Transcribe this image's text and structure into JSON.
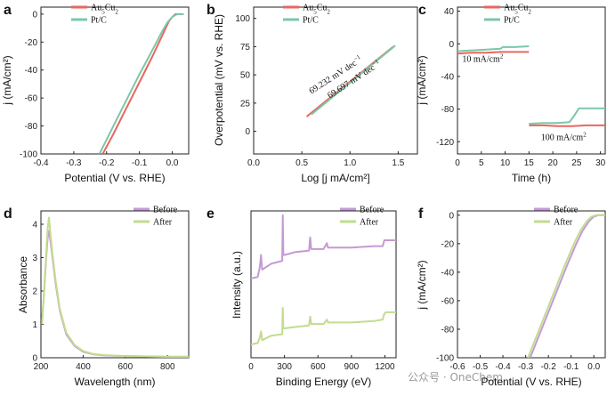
{
  "colors": {
    "au5cu2": "#e8675f",
    "ptc": "#7cc7a8",
    "before": "#c49ad4",
    "after": "#c2dc90"
  },
  "watermark": "公众号 · OneChem",
  "chart_data": [
    {
      "id": "a",
      "panel_label": "a",
      "type": "line",
      "xlabel": "Potential (V vs. RHE)",
      "ylabel": "j (mA/cm²)",
      "xlim": [
        -0.4,
        0.05
      ],
      "ylim": [
        -100,
        5
      ],
      "xticks": [
        -0.4,
        -0.3,
        -0.2,
        -0.1,
        0.0
      ],
      "xtick_labels": [
        "-0.4",
        "-0.3",
        "-0.2",
        "-0.1",
        "0.0"
      ],
      "yticks": [
        -100,
        -80,
        -60,
        -40,
        -20,
        0
      ],
      "ytick_labels": [
        "-100",
        "-80",
        "-60",
        "-40",
        "-20",
        "0"
      ],
      "legend": [
        {
          "label": "Au5Cu2",
          "base": "Au",
          "sub1": "5",
          "mid": "Cu",
          "sub2": "2",
          "color_key": "au5cu2"
        },
        {
          "label": "Pt/C",
          "color_key": "ptc"
        }
      ],
      "series": [
        {
          "name": "Au5Cu2",
          "color_key": "au5cu2",
          "x": [
            -0.212,
            -0.18,
            -0.15,
            -0.12,
            -0.09,
            -0.06,
            -0.04,
            -0.02,
            -0.01,
            0.0,
            0.01,
            0.03
          ],
          "y": [
            -100,
            -86,
            -72,
            -58,
            -44,
            -30,
            -20,
            -10,
            -5,
            -2,
            0,
            0
          ]
        },
        {
          "name": "Pt/C",
          "color_key": "ptc",
          "x": [
            -0.222,
            -0.19,
            -0.16,
            -0.13,
            -0.1,
            -0.07,
            -0.05,
            -0.03,
            -0.015,
            0.0,
            0.015,
            0.035
          ],
          "y": [
            -100,
            -85,
            -71,
            -57,
            -43,
            -30,
            -21,
            -12,
            -6,
            -2,
            0,
            0
          ]
        }
      ]
    },
    {
      "id": "b",
      "panel_label": "b",
      "type": "line",
      "xlabel": "Log [j mA/cm²]",
      "ylabel": "Overpotential (mV vs. RHE)",
      "xlim": [
        0.0,
        1.7
      ],
      "ylim": [
        -20,
        110
      ],
      "xticks": [
        0.0,
        0.5,
        1.0,
        1.5
      ],
      "xtick_labels": [
        "0.0",
        "0.5",
        "1.0",
        "1.5"
      ],
      "yticks": [
        0,
        25,
        50,
        75,
        100
      ],
      "ytick_labels": [
        "0",
        "25",
        "50",
        "75",
        "100"
      ],
      "legend": [
        {
          "label": "Au5Cu2",
          "base": "Au",
          "sub1": "5",
          "mid": "Cu",
          "sub2": "2",
          "color_key": "au5cu2"
        },
        {
          "label": "Pt/C",
          "color_key": "ptc"
        }
      ],
      "annotations": [
        {
          "text": "69.232 mV dec",
          "sup": "−1",
          "color_key": "au5cu2",
          "at": [
            0.6,
            33
          ]
        },
        {
          "text": "69.697 mV dec",
          "sup": "−1",
          "color_key": "ptc",
          "at": [
            0.79,
            29
          ]
        }
      ],
      "series": [
        {
          "name": "Au5Cu2",
          "color_key": "au5cu2",
          "x": [
            0.55,
            1.45
          ],
          "y": [
            13,
            75
          ]
        },
        {
          "name": "Pt/C",
          "color_key": "ptc",
          "x": [
            0.6,
            1.47
          ],
          "y": [
            15,
            76
          ]
        }
      ]
    },
    {
      "id": "c",
      "panel_label": "c",
      "type": "line",
      "xlabel": "Time (h)",
      "ylabel": "j (mA/cm²)",
      "xlim": [
        0,
        31
      ],
      "ylim": [
        -135,
        45
      ],
      "xticks": [
        0,
        5,
        10,
        15,
        20,
        25,
        30
      ],
      "xtick_labels": [
        "0",
        "5",
        "10",
        "15",
        "20",
        "25",
        "30"
      ],
      "yticks": [
        -120,
        -80,
        -40,
        0,
        40
      ],
      "ytick_labels": [
        "-120",
        "-80",
        "-40",
        "0",
        "40"
      ],
      "legend": [
        {
          "label": "Au5Cu2",
          "base": "Au",
          "sub1": "5",
          "mid": "Cu",
          "sub2": "2",
          "color_key": "au5cu2"
        },
        {
          "label": "Pt/C",
          "color_key": "ptc"
        }
      ],
      "annotations": [
        {
          "text": "10 mA/cm",
          "sup": "2",
          "color_key": "",
          "at": [
            1.0,
            -22
          ]
        },
        {
          "text": "100 mA/cm",
          "sup": "2",
          "color_key": "",
          "at": [
            17.5,
            -118
          ]
        }
      ],
      "series": [
        {
          "name": "Au5Cu2 (10 mA/cm²)",
          "color_key": "au5cu2",
          "x": [
            0,
            3,
            6,
            9,
            12,
            15
          ],
          "y": [
            -12,
            -11,
            -11,
            -10,
            -10,
            -10
          ]
        },
        {
          "name": "Pt/C (10 mA/cm²)",
          "color_key": "ptc",
          "x": [
            0,
            3,
            6,
            9,
            9.5,
            12,
            15
          ],
          "y": [
            -9,
            -8,
            -7,
            -6,
            -4,
            -4,
            -3
          ]
        },
        {
          "name": "Au5Cu2 (100 mA/cm²)",
          "color_key": "au5cu2",
          "x": [
            15,
            18,
            21,
            24,
            27,
            31
          ],
          "y": [
            -100,
            -100,
            -101,
            -101,
            -100,
            -100
          ]
        },
        {
          "name": "Pt/C (100 mA/cm²)",
          "color_key": "ptc",
          "x": [
            15,
            18,
            21,
            23.5,
            24.5,
            25.5,
            28,
            31
          ],
          "y": [
            -98,
            -97,
            -97,
            -96,
            -88,
            -79,
            -79,
            -79
          ]
        }
      ]
    },
    {
      "id": "d",
      "panel_label": "d",
      "type": "line",
      "xlabel": "Wavelength (nm)",
      "ylabel": "Absorbance",
      "xlim": [
        200,
        900
      ],
      "ylim": [
        0,
        4.4
      ],
      "xticks": [
        200,
        400,
        600,
        800
      ],
      "xtick_labels": [
        "200",
        "400",
        "600",
        "800"
      ],
      "yticks": [
        0,
        1,
        2,
        3,
        4
      ],
      "ytick_labels": [
        "0",
        "1",
        "2",
        "3",
        "4"
      ],
      "legend": [
        {
          "label": "Before",
          "color_key": "before"
        },
        {
          "label": "After",
          "color_key": "after"
        }
      ],
      "series": [
        {
          "name": "Before",
          "color_key": "before",
          "x": [
            205,
            215,
            225,
            232,
            238,
            245,
            255,
            270,
            290,
            320,
            360,
            400,
            450,
            500,
            600,
            700,
            800,
            900
          ],
          "y": [
            1.1,
            2.0,
            3.0,
            3.6,
            3.8,
            3.5,
            3.0,
            2.2,
            1.4,
            0.7,
            0.35,
            0.18,
            0.1,
            0.07,
            0.05,
            0.04,
            0.03,
            0.03
          ]
        },
        {
          "name": "After",
          "color_key": "after",
          "x": [
            205,
            215,
            225,
            232,
            238,
            245,
            255,
            270,
            290,
            320,
            360,
            400,
            450,
            500,
            600,
            700,
            800,
            900
          ],
          "y": [
            1.0,
            2.0,
            3.1,
            3.9,
            4.2,
            3.7,
            3.1,
            2.3,
            1.45,
            0.75,
            0.38,
            0.2,
            0.11,
            0.08,
            0.05,
            0.04,
            0.03,
            0.03
          ]
        }
      ]
    },
    {
      "id": "e",
      "panel_label": "e",
      "type": "line",
      "xlabel": "Binding Energy (eV)",
      "ylabel": "Intensity (a.u.)",
      "xlim": [
        0,
        1300
      ],
      "ylim": [
        0,
        1
      ],
      "xticks": [
        0,
        300,
        600,
        900,
        1200
      ],
      "xtick_labels": [
        "0",
        "300",
        "600",
        "900",
        "1200"
      ],
      "yticks": [],
      "ytick_labels": [],
      "legend": [
        {
          "label": "Before",
          "color_key": "before"
        },
        {
          "label": "After",
          "color_key": "after"
        }
      ],
      "series": [
        {
          "name": "Before",
          "color_key": "before",
          "x": [
            0,
            60,
            80,
            90,
            100,
            180,
            280,
            285,
            290,
            300,
            400,
            520,
            530,
            540,
            650,
            680,
            690,
            800,
            900,
            1100,
            1180,
            1195,
            1210,
            1300
          ],
          "y": [
            0.54,
            0.55,
            0.62,
            0.7,
            0.6,
            0.64,
            0.66,
            0.97,
            0.7,
            0.7,
            0.72,
            0.73,
            0.82,
            0.74,
            0.74,
            0.78,
            0.75,
            0.75,
            0.75,
            0.76,
            0.76,
            0.8,
            0.8,
            0.8
          ]
        },
        {
          "name": "After",
          "color_key": "after",
          "x": [
            0,
            60,
            80,
            90,
            100,
            180,
            280,
            285,
            290,
            300,
            400,
            520,
            530,
            540,
            650,
            680,
            690,
            800,
            900,
            1100,
            1180,
            1195,
            1210,
            1300
          ],
          "y": [
            0.09,
            0.1,
            0.14,
            0.18,
            0.12,
            0.15,
            0.16,
            0.34,
            0.2,
            0.2,
            0.21,
            0.22,
            0.28,
            0.23,
            0.23,
            0.26,
            0.24,
            0.24,
            0.24,
            0.25,
            0.26,
            0.3,
            0.31,
            0.31
          ]
        }
      ]
    },
    {
      "id": "f",
      "panel_label": "f",
      "type": "line",
      "xlabel": "Potential (V vs. RHE)",
      "ylabel": "j (mA/cm²)",
      "xlim": [
        -0.6,
        0.05
      ],
      "ylim": [
        -100,
        3
      ],
      "xticks": [
        -0.6,
        -0.5,
        -0.4,
        -0.3,
        -0.2,
        -0.1,
        0.0
      ],
      "xtick_labels": [
        "-0.6",
        "-0.5",
        "-0.4",
        "-0.3",
        "-0.2",
        "-0.1",
        "0.0"
      ],
      "yticks": [
        -100,
        -80,
        -60,
        -40,
        -20,
        0
      ],
      "ytick_labels": [
        "-100",
        "-80",
        "-60",
        "-40",
        "-20",
        "0"
      ],
      "legend": [
        {
          "label": "Before",
          "color_key": "before"
        },
        {
          "label": "After",
          "color_key": "after"
        }
      ],
      "series": [
        {
          "name": "Before",
          "color_key": "before",
          "x": [
            -0.28,
            -0.24,
            -0.2,
            -0.16,
            -0.12,
            -0.08,
            -0.05,
            -0.02,
            0.0,
            0.02,
            0.05
          ],
          "y": [
            -100,
            -84,
            -68,
            -52,
            -36,
            -21,
            -11,
            -4,
            -1,
            0,
            0
          ]
        },
        {
          "name": "After",
          "color_key": "after",
          "x": [
            -0.29,
            -0.25,
            -0.21,
            -0.17,
            -0.13,
            -0.09,
            -0.06,
            -0.03,
            -0.01,
            0.01,
            0.05
          ],
          "y": [
            -100,
            -84,
            -68,
            -52,
            -36,
            -21,
            -11,
            -4,
            -1,
            0,
            0
          ]
        }
      ]
    }
  ]
}
